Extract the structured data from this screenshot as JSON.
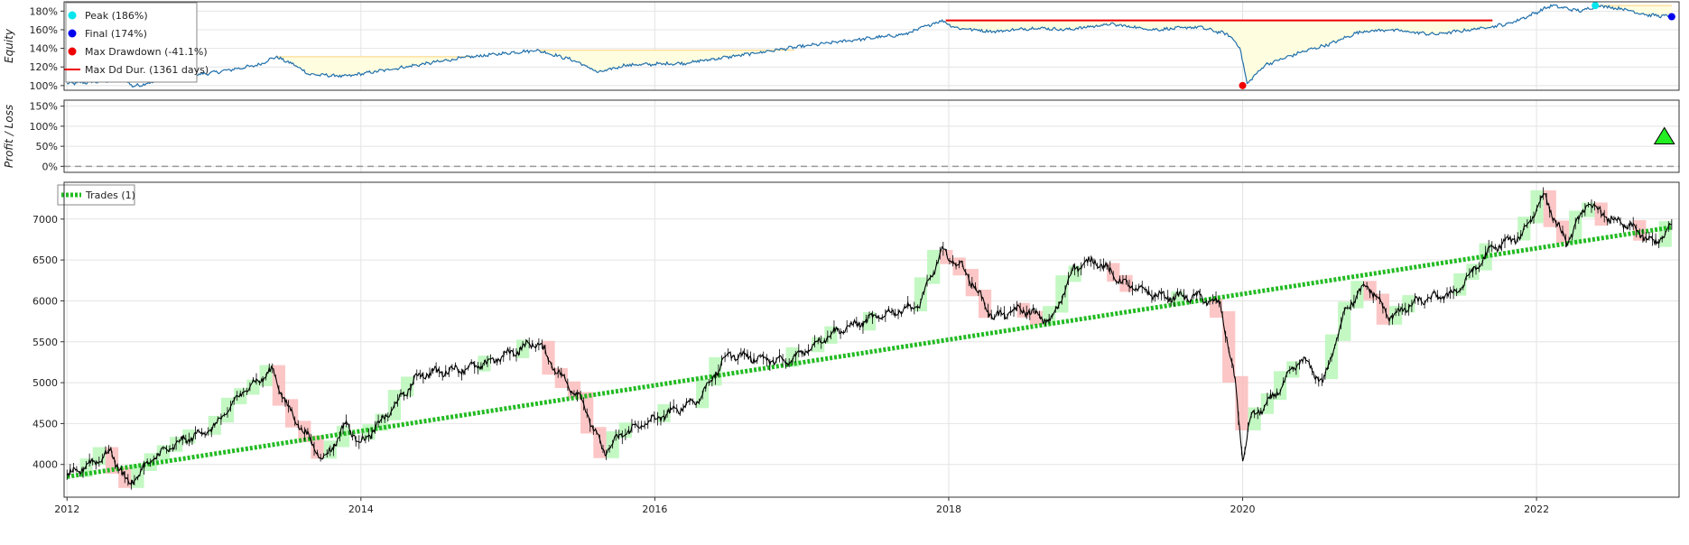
{
  "chart_data": [
    {
      "type": "line",
      "panel": "equity",
      "ylabel": "Equity",
      "ylim": [
        0.95,
        1.9
      ],
      "yticks": [
        1.0,
        1.2,
        1.4,
        1.6,
        1.8
      ],
      "ytick_labels": [
        "100%",
        "120%",
        "140%",
        "160%",
        "180%"
      ],
      "xticks": [
        2012,
        2014,
        2016,
        2018,
        2020,
        2022
      ],
      "xtick_labels": [
        "2012",
        "2014",
        "2016",
        "2018",
        "2020",
        "2022"
      ],
      "xlim": [
        2011.98,
        2022.97
      ],
      "grid": true,
      "legend_position": "top-left",
      "colors": {
        "equity": "#1f6fab",
        "peak": "#00e5ee",
        "final": "#0000ee",
        "max_drawdown": "#ee0000",
        "max_dd_duration": "#ee0000",
        "drawdown_fill": "#fffde0",
        "drawdown_edge": "#ffd27a"
      },
      "legend": [
        {
          "label": "Peak (186%)",
          "color": "#00e5ee",
          "marker": "circle"
        },
        {
          "label": "Final (174%)",
          "color": "#0000ee",
          "marker": "circle"
        },
        {
          "label": "Max Drawdown (-41.1%)",
          "color": "#ee0000",
          "marker": "circle"
        },
        {
          "label": "Max Dd Dur. (1361 days)",
          "color": "#ee0000",
          "marker": "line"
        }
      ],
      "series": [
        {
          "name": "Equity",
          "x": [
            2012.0,
            2012.2,
            2012.4,
            2012.45,
            2012.7,
            2013.0,
            2013.3,
            2013.42,
            2013.55,
            2013.65,
            2013.9,
            2014.3,
            2014.7,
            2015.0,
            2015.2,
            2015.45,
            2015.62,
            2015.8,
            2016.2,
            2016.6,
            2016.9,
            2017.3,
            2017.7,
            2017.95,
            2018.05,
            2018.3,
            2018.6,
            2018.8,
            2019.1,
            2019.4,
            2019.7,
            2019.9,
            2019.98,
            2020.03,
            2020.15,
            2020.4,
            2020.6,
            2020.8,
            2021.0,
            2021.3,
            2021.55,
            2021.8,
            2021.95,
            2022.1,
            2022.3,
            2022.42,
            2022.6,
            2022.75,
            2022.92
          ],
          "y": [
            1.02,
            1.04,
            1.06,
            0.99,
            1.08,
            1.14,
            1.22,
            1.31,
            1.22,
            1.12,
            1.1,
            1.2,
            1.3,
            1.35,
            1.38,
            1.27,
            1.14,
            1.22,
            1.24,
            1.33,
            1.4,
            1.48,
            1.55,
            1.7,
            1.62,
            1.58,
            1.62,
            1.6,
            1.66,
            1.6,
            1.63,
            1.55,
            1.42,
            1.02,
            1.22,
            1.36,
            1.45,
            1.58,
            1.6,
            1.55,
            1.6,
            1.66,
            1.75,
            1.86,
            1.8,
            1.86,
            1.82,
            1.76,
            1.74
          ]
        }
      ],
      "markers": {
        "peak": {
          "x": 2022.4,
          "y": 1.86,
          "label": "Peak (186%)"
        },
        "final": {
          "x": 2022.92,
          "y": 1.74,
          "label": "Final (174%)"
        },
        "max_drawdown": {
          "x": 2020.0,
          "y": 1.0,
          "label": "Max Drawdown (-41.1%)"
        }
      },
      "max_dd_duration": {
        "x_start": 2017.98,
        "x_end": 2021.7,
        "y": 1.7,
        "label": "Max Dd Dur. (1361 days)"
      },
      "drawdown_periods": [
        {
          "x_start": 2013.42,
          "x_end": 2014.75,
          "peak": 1.31
        },
        {
          "x_start": 2015.2,
          "x_end": 2016.95,
          "peak": 1.38
        },
        {
          "x_start": 2017.98,
          "x_end": 2021.7,
          "peak": 1.7
        },
        {
          "x_start": 2022.4,
          "x_end": 2022.92,
          "peak": 1.86
        }
      ]
    },
    {
      "type": "scatter",
      "panel": "profit_loss",
      "ylabel": "Profit / Loss",
      "ylim": [
        -0.15,
        1.65
      ],
      "yticks": [
        0.0,
        0.5,
        1.0,
        1.5
      ],
      "ytick_labels": [
        "0%",
        "50%",
        "100%",
        "150%"
      ],
      "grid": true,
      "zero_line": true,
      "series": [
        {
          "x": [
            2022.87
          ],
          "y": [
            0.74
          ],
          "marker": "triangle-up",
          "color": "#22ee22"
        }
      ]
    },
    {
      "type": "line",
      "panel": "price",
      "ylim": [
        3600,
        7450
      ],
      "yticks": [
        4000,
        4500,
        5000,
        5500,
        6000,
        6500,
        7000
      ],
      "ytick_labels": [
        "4000",
        "4500",
        "5000",
        "5500",
        "6000",
        "6500",
        "7000"
      ],
      "grid": true,
      "legend_position": "top-left",
      "legend": [
        {
          "label": "Trades (1)",
          "color": "#22bb22",
          "style": "dashed"
        }
      ],
      "colors": {
        "price": "#000000",
        "up_bar": "#b8f7b8",
        "down_bar": "#fcbcbc",
        "trade": "#22bb22"
      },
      "series": [
        {
          "name": "Price",
          "x": [
            2012.0,
            2012.15,
            2012.3,
            2012.42,
            2012.6,
            2012.8,
            2013.0,
            2013.2,
            2013.4,
            2013.5,
            2013.65,
            2013.75,
            2013.9,
            2014.0,
            2014.2,
            2014.4,
            2014.6,
            2014.8,
            2015.0,
            2015.2,
            2015.35,
            2015.5,
            2015.65,
            2015.8,
            2016.0,
            2016.3,
            2016.5,
            2016.7,
            2016.9,
            2017.2,
            2017.5,
            2017.8,
            2017.95,
            2018.1,
            2018.3,
            2018.5,
            2018.7,
            2018.85,
            2019.0,
            2019.2,
            2019.45,
            2019.7,
            2019.85,
            2019.95,
            2020.0,
            2020.05,
            2020.2,
            2020.4,
            2020.55,
            2020.7,
            2020.85,
            2021.0,
            2021.2,
            2021.45,
            2021.7,
            2021.9,
            2022.05,
            2022.2,
            2022.35,
            2022.5,
            2022.65,
            2022.8,
            2022.92
          ],
          "y": [
            3850,
            4000,
            4150,
            3750,
            4100,
            4300,
            4450,
            4900,
            5150,
            4700,
            4300,
            4050,
            4500,
            4250,
            4650,
            5100,
            5150,
            5200,
            5350,
            5500,
            5100,
            4800,
            4150,
            4400,
            4550,
            4800,
            5350,
            5300,
            5250,
            5600,
            5800,
            5950,
            6600,
            6400,
            5800,
            5900,
            5750,
            6400,
            6500,
            6200,
            6050,
            6050,
            5950,
            5000,
            4050,
            4550,
            4800,
            5300,
            5000,
            5900,
            6200,
            5800,
            6000,
            6100,
            6650,
            6800,
            7300,
            6700,
            7200,
            7000,
            6900,
            6700,
            6900
          ]
        },
        {
          "name": "Trades (1)",
          "x": [
            2012.0,
            2022.92
          ],
          "y": [
            3850,
            6900
          ]
        }
      ]
    }
  ]
}
